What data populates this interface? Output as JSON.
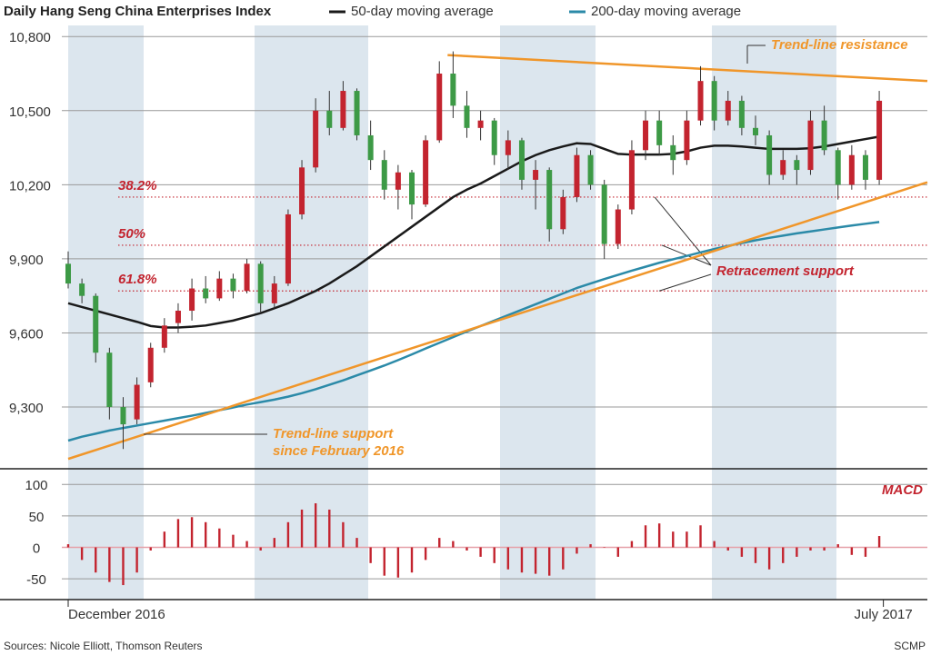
{
  "chart_data": [
    {
      "type": "candlestick",
      "title": "Daily Hang Seng China Enterprises Index",
      "open": [
        9880,
        9800,
        9750,
        9520,
        9300,
        9250,
        9400,
        9540,
        9640,
        9690,
        9780,
        9740,
        9820,
        9770,
        9880,
        9720,
        9800,
        10080,
        10270,
        10500,
        10430,
        10580,
        10400,
        10300,
        10180,
        10250,
        10120,
        10380,
        10650,
        10520,
        10430,
        10460,
        10320,
        10380,
        10220,
        10260,
        10020,
        10150,
        10320,
        10200,
        9960,
        10100,
        10340,
        10460,
        10360,
        10300,
        10460,
        10620,
        10460,
        10540,
        10430,
        10400,
        10240,
        10300,
        10260,
        10460,
        10340,
        10200,
        10320,
        10220
      ],
      "high": [
        9930,
        9820,
        9760,
        9540,
        9340,
        9420,
        9560,
        9660,
        9720,
        9820,
        9830,
        9850,
        9840,
        9900,
        9890,
        9830,
        10100,
        10300,
        10550,
        10580,
        10620,
        10590,
        10460,
        10340,
        10280,
        10260,
        10400,
        10700,
        10740,
        10580,
        10500,
        10470,
        10420,
        10390,
        10300,
        10270,
        10180,
        10350,
        10340,
        10220,
        10120,
        10380,
        10500,
        10500,
        10400,
        10500,
        10680,
        10640,
        10580,
        10560,
        10480,
        10420,
        10340,
        10320,
        10500,
        10520,
        10350,
        10360,
        10340,
        10580
      ],
      "low": [
        9780,
        9720,
        9480,
        9250,
        9130,
        9230,
        9380,
        9520,
        9600,
        9650,
        9720,
        9730,
        9740,
        9760,
        9680,
        9700,
        9790,
        10060,
        10250,
        10400,
        10420,
        10380,
        10260,
        10140,
        10100,
        10060,
        10110,
        10370,
        10470,
        10390,
        10380,
        10280,
        10260,
        10180,
        10100,
        9970,
        10000,
        10130,
        10180,
        9900,
        9940,
        10080,
        10300,
        10320,
        10240,
        10280,
        10440,
        10420,
        10440,
        10400,
        10360,
        10200,
        10220,
        10200,
        10240,
        10320,
        10140,
        10180,
        10180,
        10200
      ],
      "close": [
        9800,
        9750,
        9520,
        9300,
        9230,
        9390,
        9540,
        9630,
        9690,
        9780,
        9740,
        9820,
        9770,
        9880,
        9720,
        9800,
        10080,
        10270,
        10500,
        10430,
        10580,
        10400,
        10300,
        10180,
        10250,
        10120,
        10380,
        10650,
        10520,
        10430,
        10460,
        10320,
        10380,
        10220,
        10260,
        10020,
        10150,
        10320,
        10200,
        9960,
        10100,
        10340,
        10460,
        10360,
        10300,
        10460,
        10620,
        10460,
        10540,
        10430,
        10400,
        10240,
        10300,
        10260,
        10460,
        10340,
        10200,
        10320,
        10220,
        10540
      ],
      "up_color": "#c3242f",
      "down_color": "#3d9a46",
      "series": [
        {
          "name": "50-day moving average",
          "color": "#1a1a1a",
          "values": [
            9720,
            9705,
            9690,
            9675,
            9660,
            9645,
            9628,
            9622,
            9622,
            9625,
            9630,
            9640,
            9650,
            9665,
            9680,
            9700,
            9720,
            9745,
            9770,
            9800,
            9835,
            9870,
            9910,
            9950,
            9990,
            10030,
            10070,
            10110,
            10150,
            10180,
            10205,
            10235,
            10265,
            10295,
            10320,
            10340,
            10355,
            10368,
            10365,
            10345,
            10325,
            10322,
            10322,
            10322,
            10325,
            10335,
            10350,
            10358,
            10358,
            10355,
            10350,
            10345,
            10345,
            10345,
            10348,
            10355,
            10365,
            10375,
            10385,
            10395
          ]
        },
        {
          "name": "200-day moving average",
          "color": "#2b8aa8",
          "values": [
            9164,
            9180,
            9192,
            9205,
            9215,
            9225,
            9235,
            9245,
            9255,
            9265,
            9276,
            9287,
            9298,
            9310,
            9320,
            9330,
            9342,
            9356,
            9372,
            9390,
            9408,
            9428,
            9448,
            9468,
            9490,
            9513,
            9537,
            9560,
            9583,
            9606,
            9628,
            9650,
            9672,
            9694,
            9716,
            9738,
            9760,
            9782,
            9800,
            9818,
            9835,
            9852,
            9868,
            9884,
            9898,
            9912,
            9926,
            9940,
            9952,
            9964,
            9975,
            9985,
            9994,
            10003,
            10011,
            10019,
            10027,
            10035,
            10042,
            10049
          ]
        }
      ],
      "ylim": [
        9050,
        10845
      ],
      "yticks": [
        {
          "value": 10800,
          "label": "10,800"
        },
        {
          "value": 10500,
          "label": "10,500"
        },
        {
          "value": 10200,
          "label": "10,200"
        },
        {
          "value": 9900,
          "label": "9,900"
        },
        {
          "value": 9600,
          "label": "9,600"
        },
        {
          "value": 9300,
          "label": "9,300"
        }
      ],
      "xlim": [
        0,
        62.5
      ],
      "xticks": [
        {
          "value": 0,
          "label": "December 2016"
        },
        {
          "value": 59.3,
          "label": "July 2017"
        }
      ],
      "grid": true,
      "trend_lines": [
        {
          "label": [
            "Trend-line resistance"
          ],
          "color": "#f0962a",
          "start": [
            27.6,
            10725
          ],
          "end": [
            62.5,
            10620
          ]
        },
        {
          "label": [
            "Trend-line support",
            "since February 2016"
          ],
          "color": "#f0962a",
          "start": [
            0,
            9090
          ],
          "end": [
            62.5,
            10210
          ]
        }
      ],
      "retracements": [
        {
          "label": "38.2%",
          "value": 10150
        },
        {
          "label": "50%",
          "value": 9955
        },
        {
          "label": "61.8%",
          "value": 9770
        }
      ],
      "retracement_color": "#c3242f",
      "retracement_label": "Retracement support",
      "source": "Sources: Nicole Elliott, Thomson Reuters",
      "credit": "SCMP"
    },
    {
      "type": "bar",
      "title": "MACD",
      "color": "#c3242f",
      "values": [
        5,
        -20,
        -40,
        -55,
        -60,
        -40,
        -5,
        25,
        45,
        48,
        40,
        30,
        20,
        10,
        -5,
        15,
        40,
        60,
        70,
        60,
        40,
        15,
        -25,
        -45,
        -48,
        -40,
        -20,
        15,
        10,
        -5,
        -15,
        -25,
        -35,
        -40,
        -42,
        -45,
        -35,
        -10,
        5,
        0,
        -15,
        10,
        35,
        38,
        25,
        25,
        35,
        10,
        -5,
        -15,
        -25,
        -35,
        -25,
        -15,
        -5,
        -5,
        5,
        -12,
        -15,
        18
      ],
      "ylim": [
        -83,
        122
      ],
      "yticks": [
        100,
        50,
        0,
        -50
      ],
      "grid": true
    }
  ]
}
